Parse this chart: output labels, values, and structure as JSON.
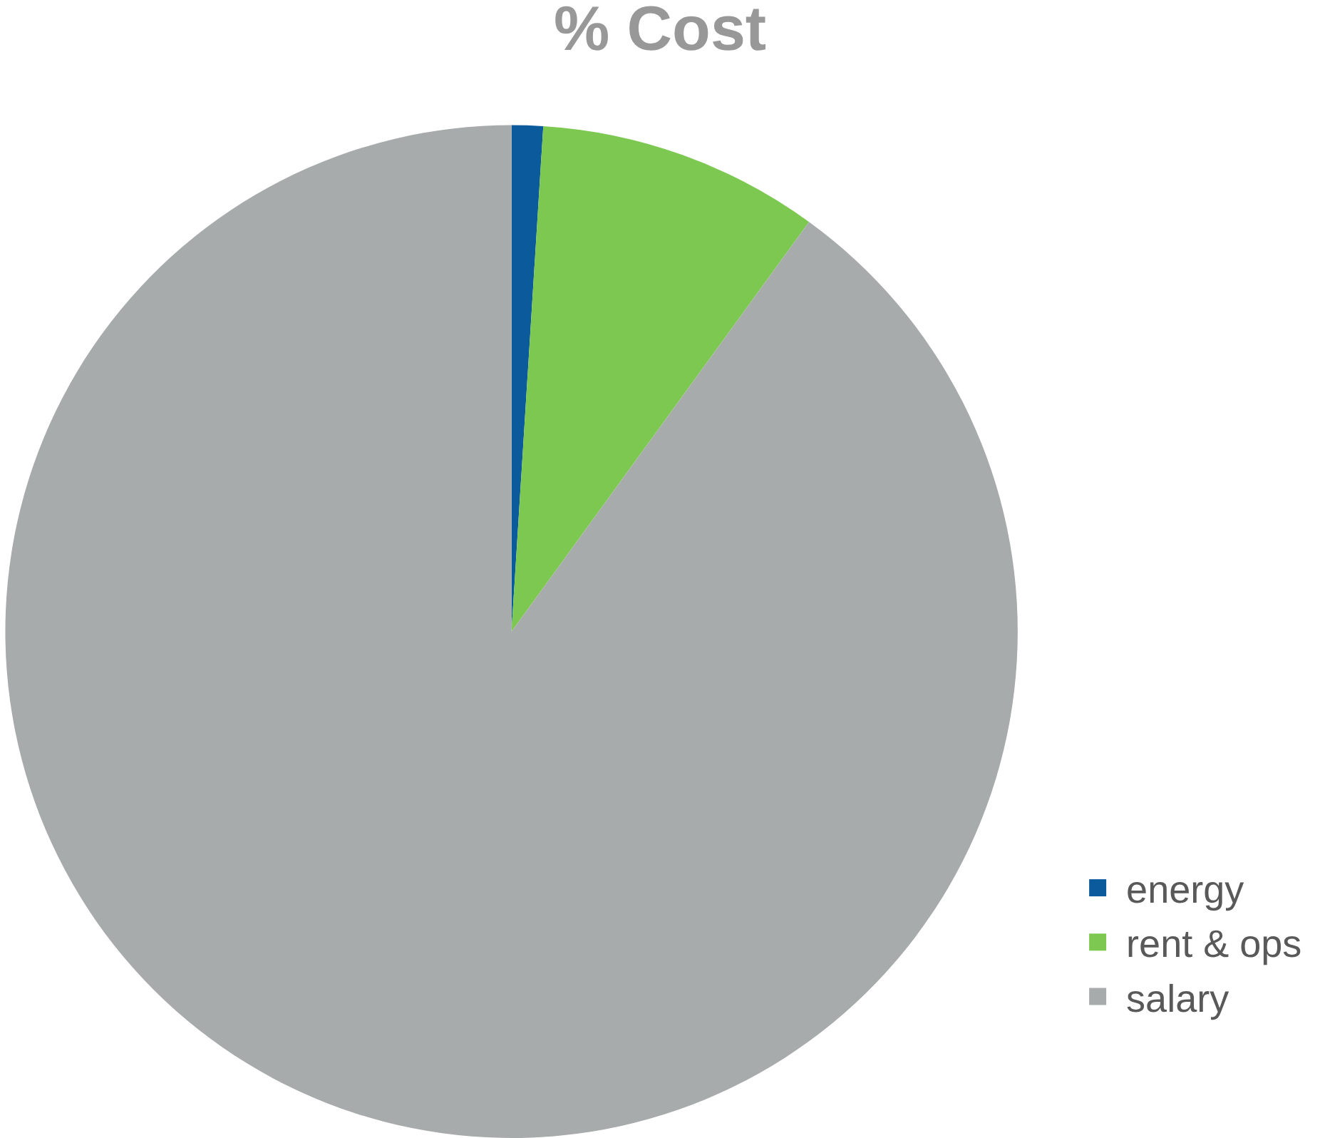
{
  "chart_data": {
    "type": "pie",
    "title": "% Cost",
    "categories": [
      "energy",
      "rent & ops",
      "salary"
    ],
    "values": [
      1,
      9,
      90
    ],
    "colors": [
      "#0b5a9c",
      "#7cc850",
      "#a8abab"
    ],
    "legend": "bottom right"
  }
}
